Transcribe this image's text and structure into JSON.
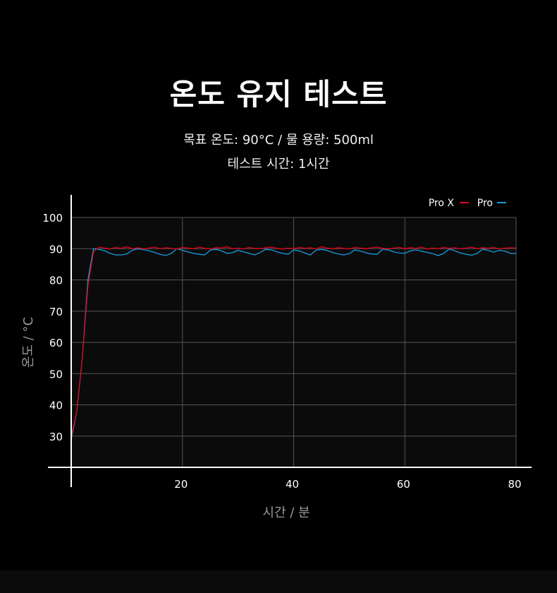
{
  "title": "온도 유지 테스트",
  "subtitle1": "목표 온도: 90°C / 물 용량: 500ml",
  "subtitle2": "테스트 시간: 1시간",
  "chart_data": {
    "type": "line",
    "xlabel": "시간 / 분",
    "ylabel": "온도 / °C",
    "xlim": [
      0,
      80
    ],
    "ylim": [
      20,
      100
    ],
    "xticks": [
      20,
      40,
      60,
      80
    ],
    "yticks": [
      30,
      40,
      50,
      60,
      70,
      80,
      90,
      100
    ],
    "grid": true,
    "legend": "top-right",
    "x": [
      0,
      1,
      2,
      3,
      4,
      5,
      6,
      7,
      8,
      9,
      10,
      11,
      12,
      13,
      14,
      15,
      16,
      17,
      18,
      19,
      20,
      21,
      22,
      23,
      24,
      25,
      26,
      27,
      28,
      29,
      30,
      31,
      32,
      33,
      34,
      35,
      36,
      37,
      38,
      39,
      40,
      41,
      42,
      43,
      44,
      45,
      46,
      47,
      48,
      49,
      50,
      51,
      52,
      53,
      54,
      55,
      56,
      57,
      58,
      59,
      60,
      61,
      62,
      63,
      64,
      65,
      66,
      67,
      68,
      69,
      70,
      71,
      72,
      73,
      74,
      75,
      76,
      77,
      78,
      79,
      80
    ],
    "series": [
      {
        "name": "Pro X",
        "color": "#e3001b",
        "values": [
          30,
          38,
          55,
          78,
          89,
          90.5,
          90.2,
          89.9,
          90.4,
          90.1,
          90.6,
          90,
          90.3,
          89.9,
          90.2,
          90.5,
          90,
          90.3,
          90.1,
          89.9,
          90.4,
          90.2,
          90,
          90.5,
          90.1,
          89.9,
          90.3,
          90.2,
          90.6,
          90,
          90.2,
          89.9,
          90.4,
          90.1,
          90,
          90.3,
          90.5,
          90.1,
          89.9,
          90.2,
          90,
          90.4,
          90.1,
          90.3,
          89.9,
          90.6,
          90.2,
          90,
          90.3,
          90.1,
          89.9,
          90.4,
          90.2,
          90,
          90.3,
          90.5,
          90.1,
          89.9,
          90.2,
          90.4,
          90,
          90.3,
          90.1,
          90.5,
          89.9,
          90.2,
          90,
          90.4,
          90.1,
          90.3,
          89.9,
          90.2,
          90.5,
          90,
          90.3,
          90.1,
          90.4,
          89.9,
          90.2,
          90.3,
          90.2
        ]
      },
      {
        "name": "Pro",
        "color": "#1a9be0",
        "values": [
          29,
          38,
          55,
          80,
          90,
          89.8,
          89.3,
          88.5,
          88,
          88,
          88.3,
          89.5,
          90,
          89.7,
          89.3,
          88.8,
          88.2,
          87.8,
          88.5,
          90,
          89.5,
          89,
          88.5,
          88.2,
          88,
          89.5,
          89.8,
          89.3,
          88.5,
          88.7,
          89.5,
          89,
          88.5,
          88,
          88.8,
          89.8,
          89.6,
          89,
          88.5,
          88.2,
          89.6,
          89.3,
          88.6,
          88,
          89.5,
          89.8,
          89.4,
          88.8,
          88.3,
          88,
          88.4,
          89.6,
          89.2,
          88.7,
          88.3,
          88.2,
          89.8,
          89.6,
          89,
          88.6,
          88.5,
          89.3,
          89.6,
          89.2,
          88.8,
          88.4,
          87.8,
          88.5,
          89.9,
          89.3,
          88.6,
          88.2,
          87.9,
          88.5,
          89.9,
          89.4,
          88.9,
          89.5,
          89.2,
          88.5,
          88.4
        ]
      }
    ]
  }
}
